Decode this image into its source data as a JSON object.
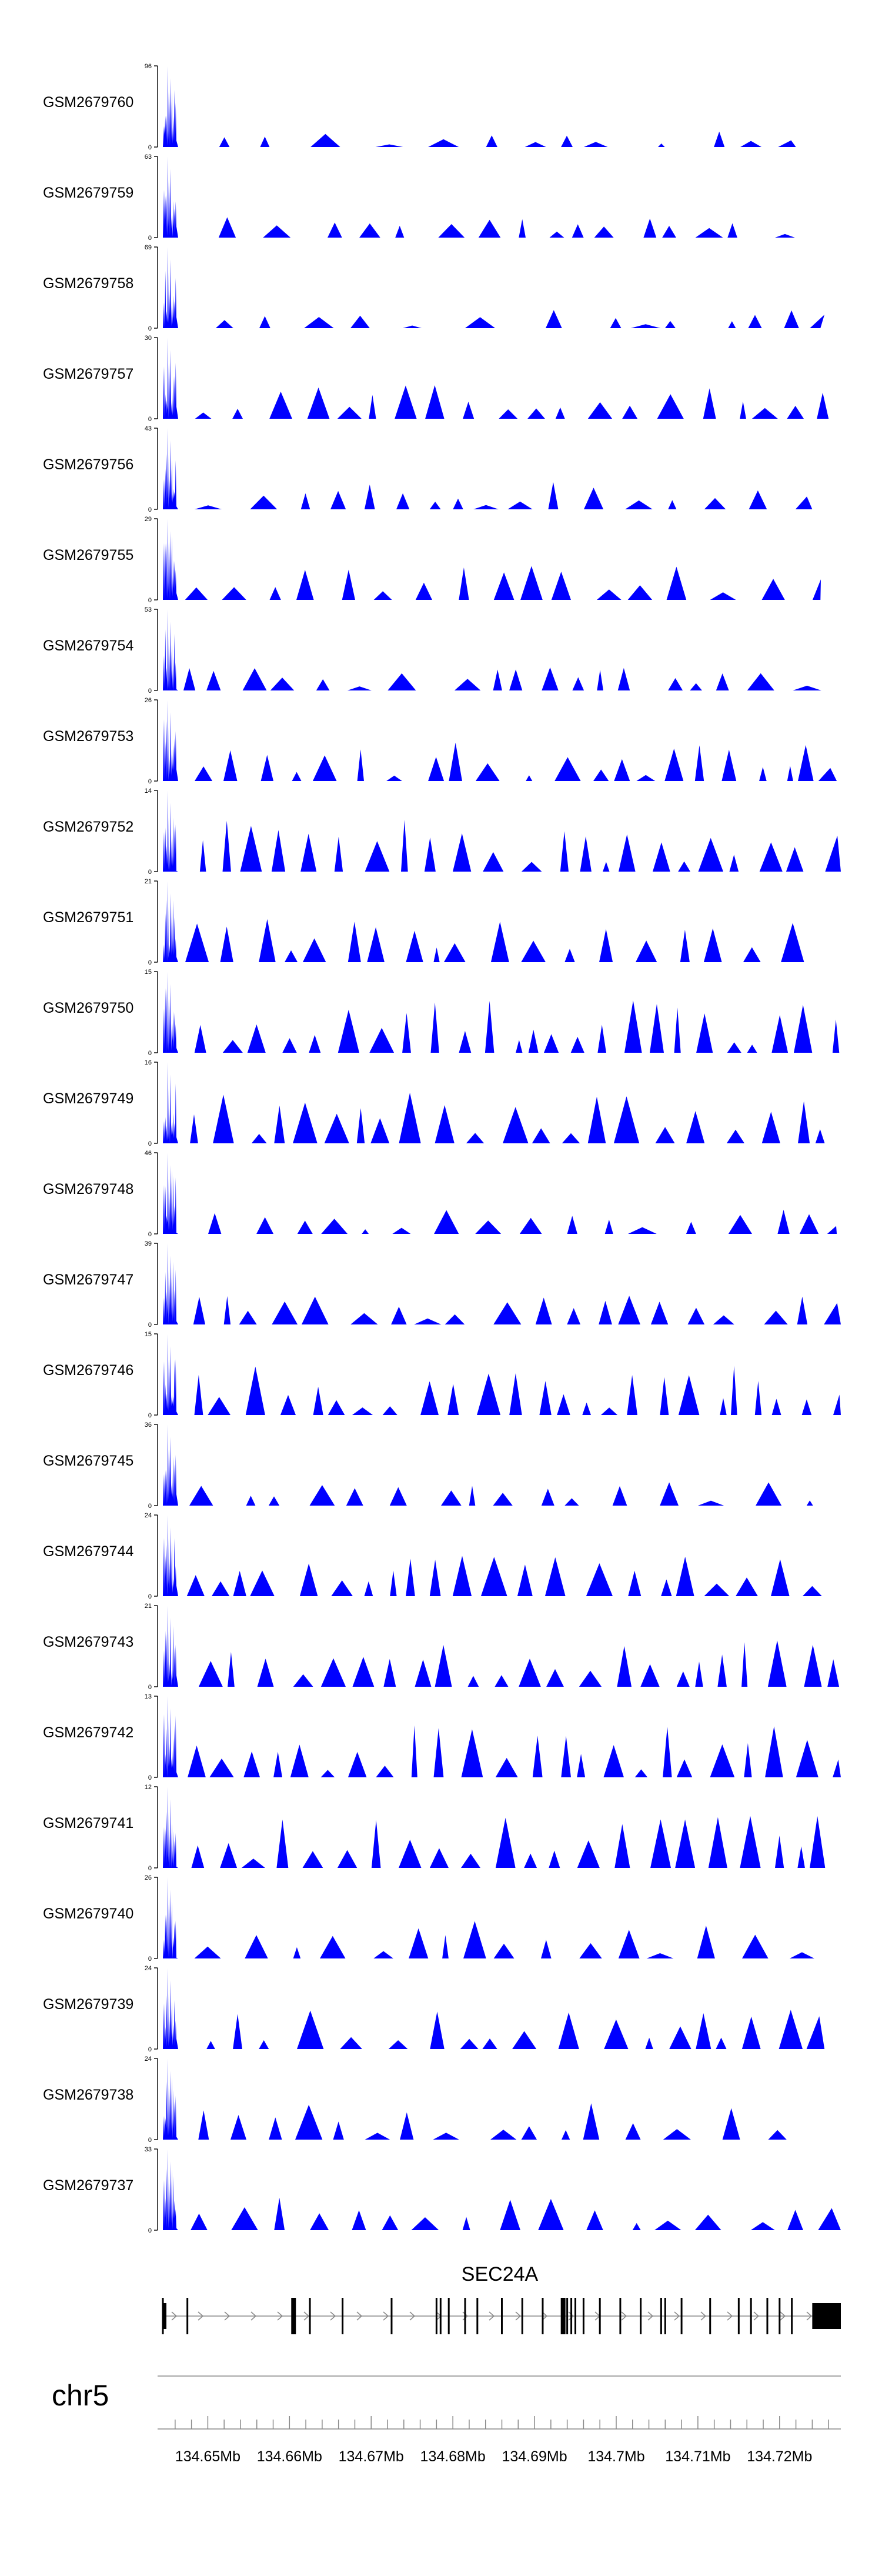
{
  "chart_data": {
    "type": "area",
    "chromosome": "chr5",
    "gene": "SEC24A",
    "x_range": [
      134.6445,
      134.7275
    ],
    "x_ticks": [
      "134.65Mb",
      "134.66Mb",
      "134.67Mb",
      "134.68Mb",
      "134.69Mb",
      "134.7Mb",
      "134.71Mb",
      "134.72Mb"
    ],
    "x_tick_values": [
      134.65,
      134.66,
      134.67,
      134.68,
      134.69,
      134.7,
      134.71,
      134.72
    ],
    "fill_color": "#0000FF",
    "tracks": [
      {
        "name": "GSM2679760",
        "ymax": 96,
        "ymax_label": "96",
        "end": 134.722,
        "density": 0.35,
        "seed": 60
      },
      {
        "name": "GSM2679759",
        "ymax": 63,
        "ymax_label": "63",
        "end": 134.725,
        "density": 0.45,
        "seed": 59
      },
      {
        "name": "GSM2679758",
        "ymax": 69,
        "ymax_label": "69",
        "end": 134.725,
        "density": 0.35,
        "seed": 58
      },
      {
        "name": "GSM2679757",
        "ymax": 30,
        "ymax_label": "30",
        "end": 134.727,
        "density": 0.75,
        "seed": 57
      },
      {
        "name": "GSM2679756",
        "ymax": 43,
        "ymax_label": "43",
        "end": 134.724,
        "density": 0.6,
        "seed": 56
      },
      {
        "name": "GSM2679755",
        "ymax": 29,
        "ymax_label": "29",
        "end": 134.725,
        "density": 0.7,
        "seed": 55
      },
      {
        "name": "GSM2679754",
        "ymax": 53,
        "ymax_label": "53",
        "end": 134.727,
        "density": 0.5,
        "seed": 54
      },
      {
        "name": "GSM2679753",
        "ymax": 26,
        "ymax_label": "26",
        "end": 134.727,
        "density": 0.75,
        "seed": 53
      },
      {
        "name": "GSM2679752",
        "ymax": 14,
        "ymax_label": "14",
        "end": 134.7275,
        "density": 0.95,
        "seed": 52
      },
      {
        "name": "GSM2679751",
        "ymax": 21,
        "ymax_label": "21",
        "end": 134.723,
        "density": 0.8,
        "seed": 51
      },
      {
        "name": "GSM2679750",
        "ymax": 15,
        "ymax_label": "15",
        "end": 134.7275,
        "density": 0.95,
        "seed": 50
      },
      {
        "name": "GSM2679749",
        "ymax": 16,
        "ymax_label": "16",
        "end": 134.727,
        "density": 0.9,
        "seed": 49
      },
      {
        "name": "GSM2679748",
        "ymax": 46,
        "ymax_label": "46",
        "end": 134.727,
        "density": 0.55,
        "seed": 48
      },
      {
        "name": "GSM2679747",
        "ymax": 39,
        "ymax_label": "39",
        "end": 134.7275,
        "density": 0.6,
        "seed": 47
      },
      {
        "name": "GSM2679746",
        "ymax": 15,
        "ymax_label": "15",
        "end": 134.7275,
        "density": 0.9,
        "seed": 46
      },
      {
        "name": "GSM2679745",
        "ymax": 36,
        "ymax_label": "36",
        "end": 134.7265,
        "density": 0.55,
        "seed": 45
      },
      {
        "name": "GSM2679744",
        "ymax": 24,
        "ymax_label": "24",
        "end": 134.7255,
        "density": 0.8,
        "seed": 44
      },
      {
        "name": "GSM2679743",
        "ymax": 21,
        "ymax_label": "21",
        "end": 134.7275,
        "density": 0.9,
        "seed": 43
      },
      {
        "name": "GSM2679742",
        "ymax": 13,
        "ymax_label": "13",
        "end": 134.7275,
        "density": 1.0,
        "seed": 42
      },
      {
        "name": "GSM2679741",
        "ymax": 12,
        "ymax_label": "12",
        "end": 134.726,
        "density": 1.0,
        "seed": 41
      },
      {
        "name": "GSM2679740",
        "ymax": 26,
        "ymax_label": "26",
        "end": 134.7265,
        "density": 0.7,
        "seed": 40
      },
      {
        "name": "GSM2679739",
        "ymax": 24,
        "ymax_label": "24",
        "end": 134.7255,
        "density": 0.7,
        "seed": 39
      },
      {
        "name": "GSM2679738",
        "ymax": 24,
        "ymax_label": "24",
        "end": 134.7225,
        "density": 0.6,
        "seed": 38
      },
      {
        "name": "GSM2679737",
        "ymax": 33,
        "ymax_label": "33",
        "end": 134.7275,
        "density": 0.65,
        "seed": 37
      }
    ],
    "exons": [
      134.6445,
      134.6475,
      134.6605,
      134.6625,
      134.6665,
      134.6725,
      134.678,
      134.6785,
      134.6795,
      134.6815,
      134.683,
      134.686,
      134.6885,
      134.691,
      134.6935,
      134.694,
      134.6945,
      134.695,
      134.696,
      134.698,
      134.7005,
      134.703,
      134.7055,
      134.706,
      134.708,
      134.7115,
      134.715,
      134.7165,
      134.7185,
      134.72,
      134.7215
    ],
    "thick_exons": [
      134.6605,
      134.6925,
      134.6935
    ],
    "transcript_start": 134.6445,
    "transcript_end": 134.7275
  }
}
